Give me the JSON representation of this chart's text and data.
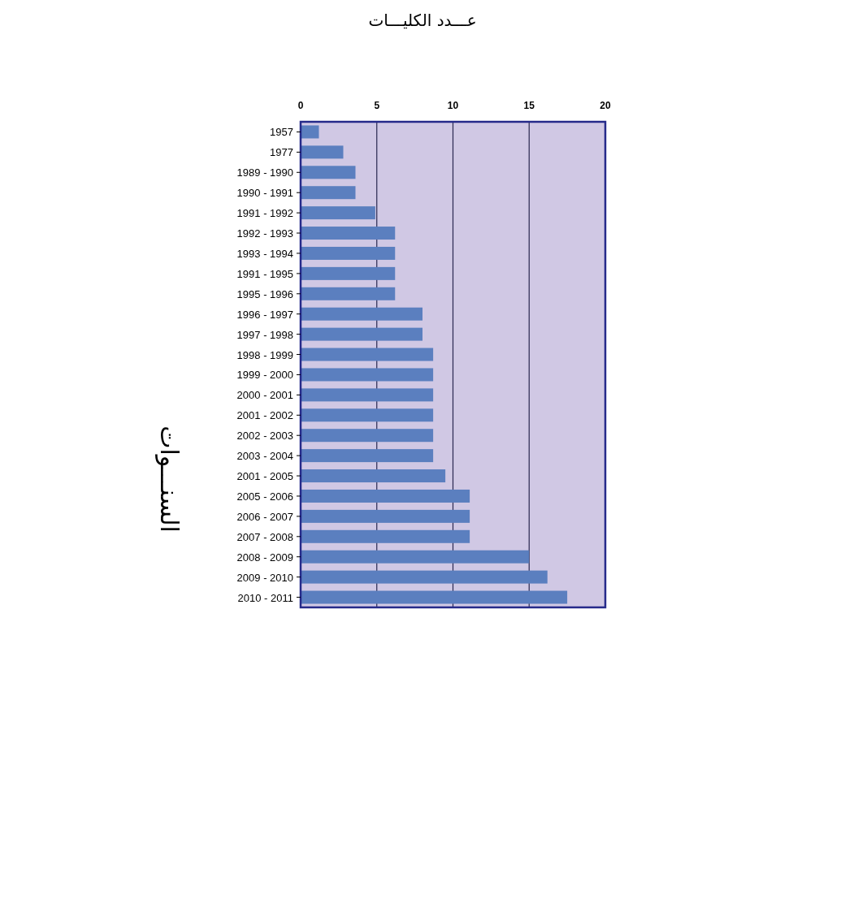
{
  "chart_data": {
    "type": "bar",
    "orientation": "horizontal",
    "title": "عـــدد الكليـــات",
    "ylabel": "السنـــوات",
    "categories": [
      "1957",
      "1977",
      "1989 - 1990",
      "1990 - 1991",
      "1991 - 1992",
      "1992 - 1993",
      "1993 - 1994",
      "1991 - 1995",
      "1995 - 1996",
      "1996 - 1997",
      "1997 - 1998",
      "1998 - 1999",
      "1999 - 2000",
      "2000 - 2001",
      "2001 - 2002",
      "2002 - 2003",
      "2003 - 2004",
      "2001 - 2005",
      "2005 - 2006",
      "2006 - 2007",
      "2007 - 2008",
      "2008 - 2009",
      "2009 - 2010",
      "2010 - 2011"
    ],
    "values": [
      1.2,
      2.8,
      3.6,
      3.6,
      4.9,
      6.2,
      6.2,
      6.2,
      6.2,
      8.0,
      8.0,
      8.7,
      8.7,
      8.7,
      8.7,
      8.7,
      8.7,
      9.5,
      11.1,
      11.1,
      11.1,
      15.0,
      16.2,
      17.5
    ],
    "color": "#5b7fbf",
    "xlim": [
      0,
      20
    ],
    "xticks": [
      0,
      5,
      10,
      15,
      20
    ],
    "grid": "x"
  }
}
